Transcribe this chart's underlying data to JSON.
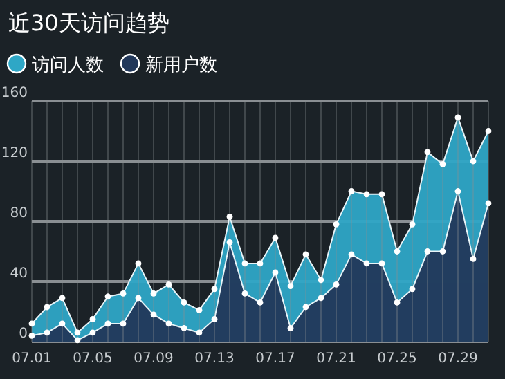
{
  "chart_data": {
    "type": "area",
    "title": "近30天访问趋势",
    "categories": [
      "07.01",
      null,
      null,
      null,
      "07.05",
      null,
      null,
      null,
      "07.09",
      null,
      null,
      null,
      "07.13",
      null,
      null,
      null,
      "07.17",
      null,
      null,
      null,
      "07.21",
      null,
      null,
      null,
      "07.25",
      null,
      null,
      null,
      "07.29",
      null,
      null
    ],
    "series": [
      {
        "name": "访问人数",
        "color": "#2ea7c6",
        "values": [
          12,
          23,
          29,
          6,
          15,
          30,
          32,
          52,
          32,
          38,
          26,
          21,
          35,
          83,
          52,
          52,
          69,
          37,
          58,
          41,
          78,
          100,
          98,
          98,
          60,
          78,
          126,
          118,
          149,
          120,
          140
        ]
      },
      {
        "name": "新用户数",
        "color": "#22385a",
        "values": [
          4,
          6,
          12,
          1,
          6,
          12,
          12,
          29,
          18,
          12,
          9,
          6,
          15,
          66,
          32,
          26,
          46,
          9,
          23,
          29,
          38,
          58,
          52,
          52,
          26,
          35,
          60,
          60,
          100,
          55,
          92
        ]
      }
    ],
    "ylim": [
      0,
      160
    ],
    "yticks": [
      0,
      40,
      80,
      120,
      160
    ],
    "grid": true,
    "legend": "top left",
    "marker": "circle"
  }
}
